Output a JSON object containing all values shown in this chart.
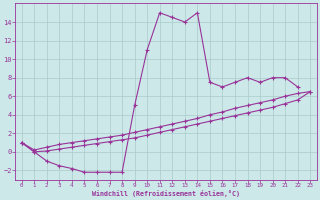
{
  "xlabel": "Windchill (Refroidissement éolien,°C)",
  "hours": [
    0,
    1,
    2,
    3,
    4,
    5,
    6,
    7,
    8,
    9,
    10,
    11,
    12,
    13,
    14,
    15,
    16,
    17,
    18,
    19,
    20,
    21,
    22,
    23
  ],
  "line_spiky": [
    1.0,
    0.0,
    -1.0,
    -1.5,
    -1.8,
    -2.2,
    -2.2,
    -2.2,
    -2.2,
    5.0,
    11.0,
    15.0,
    14.5,
    14.0,
    15.0,
    7.5,
    7.0,
    7.5,
    8.0,
    7.5,
    8.0,
    8.0,
    7.0,
    null
  ],
  "line_upper_diag": [
    1.0,
    0.2,
    0.5,
    0.8,
    1.0,
    1.2,
    1.4,
    1.6,
    1.8,
    2.1,
    2.4,
    2.7,
    3.0,
    3.3,
    3.6,
    4.0,
    4.3,
    4.7,
    5.0,
    5.3,
    5.6,
    6.0,
    6.3,
    6.5
  ],
  "line_lower_diag": [
    1.0,
    0.0,
    0.1,
    0.3,
    0.5,
    0.7,
    0.9,
    1.1,
    1.3,
    1.5,
    1.8,
    2.1,
    2.4,
    2.7,
    3.0,
    3.3,
    3.6,
    3.9,
    4.2,
    4.5,
    4.8,
    5.2,
    5.6,
    6.5
  ],
  "color": "#993399",
  "bg_color": "#cce8e8",
  "grid_color": "#aacccc",
  "ylim": [
    -3,
    16
  ],
  "xlim": [
    -0.5,
    23.5
  ],
  "yticks": [
    -2,
    0,
    2,
    4,
    6,
    8,
    10,
    12,
    14
  ],
  "xticks": [
    0,
    1,
    2,
    3,
    4,
    5,
    6,
    7,
    8,
    9,
    10,
    11,
    12,
    13,
    14,
    15,
    16,
    17,
    18,
    19,
    20,
    21,
    22,
    23
  ]
}
